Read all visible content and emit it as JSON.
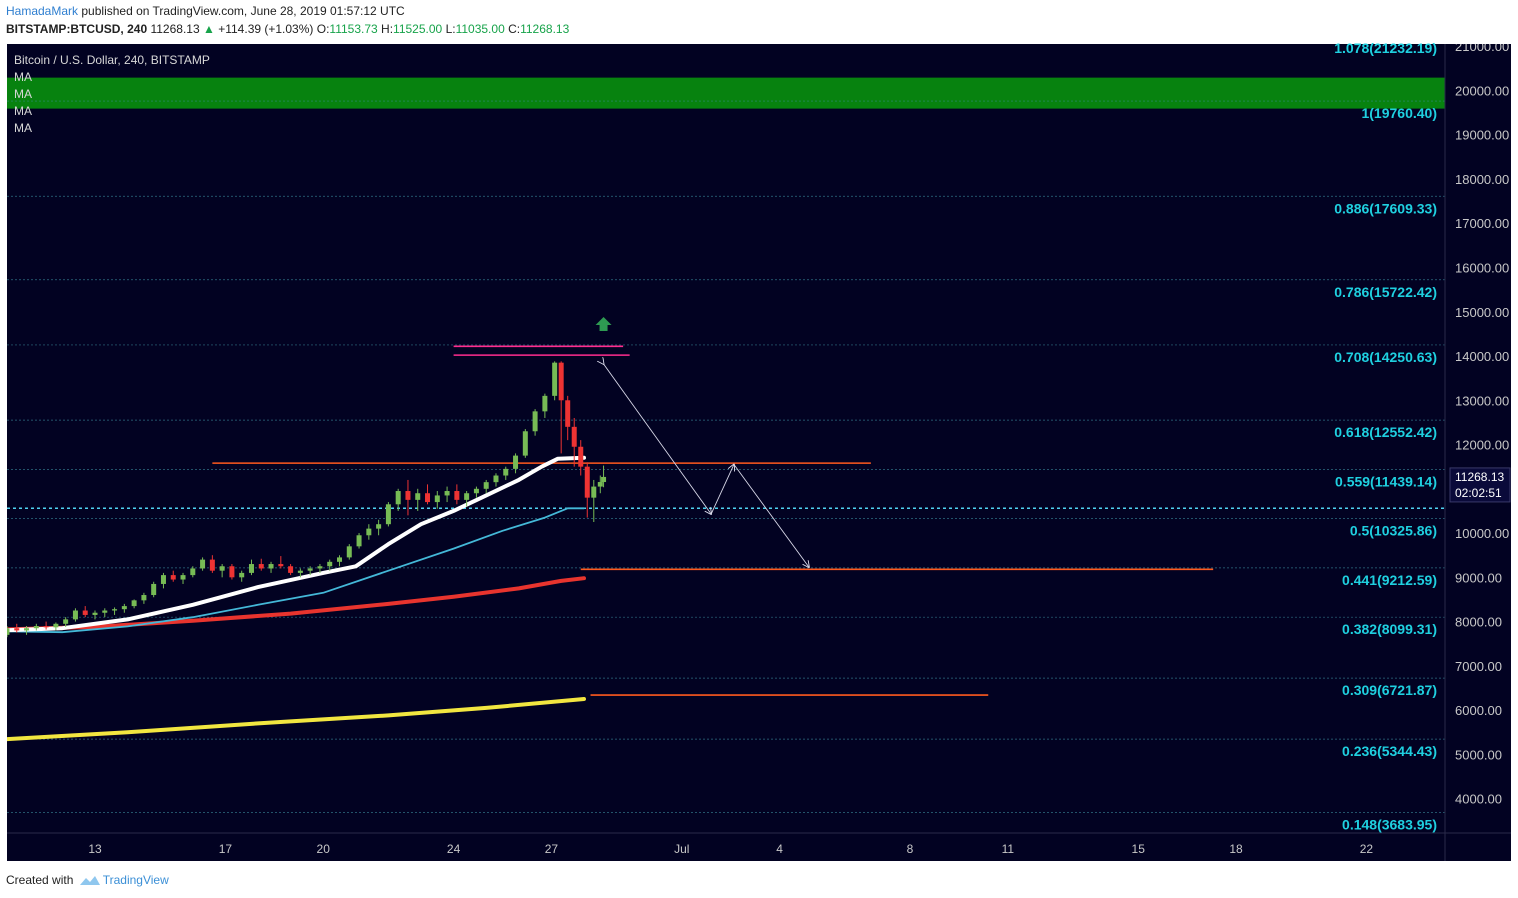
{
  "header": {
    "author": "HamadaMark",
    "published": "published on TradingView.com, June 28, 2019 01:57:12 UTC",
    "symbol": "BITSTAMP:BTCUSD, 240",
    "last": "11268.13",
    "change_arrow": "▲",
    "change": "+114.39 (+1.03%)",
    "o_label": "O:",
    "o_value": "11153.73",
    "h_label": "H:",
    "h_value": "11525.00",
    "l_label": "L:",
    "l_value": "11035.00",
    "c_label": "C:",
    "c_value": "11268.13"
  },
  "legend": {
    "title": "Bitcoin / U.S. Dollar, 240, BITSTAMP",
    "ma": [
      "MA",
      "MA",
      "MA",
      "MA"
    ]
  },
  "footer": {
    "created": "Created with",
    "brand": "TradingView",
    "logo_icon": "tradingview-logo-icon"
  },
  "colors": {
    "background": "#020222",
    "grid": "#3a8a9a",
    "fib_text": "#1fd0e0",
    "axis_text": "#c8c8c8",
    "green_zone": "#07820f",
    "orange_line": "#ff5a1e",
    "magenta_line": "#ff2d8e",
    "ma_white": "#ffffff",
    "ma_blue": "#44b8d8",
    "ma_red": "#e8342e",
    "ma_yellow": "#f2e640",
    "candle_up": "#77bb55",
    "candle_down": "#ee3333",
    "price_label_bg": "#0a0a3a"
  },
  "chart_data": {
    "type": "candlestick",
    "title": "Bitcoin / U.S. Dollar, 240, BITSTAMP",
    "ylim": [
      3400,
      21300
    ],
    "y_ticks": [
      4000,
      5000,
      6000,
      7000,
      8000,
      9000,
      10000,
      11000,
      12000,
      13000,
      14000,
      15000,
      16000,
      17000,
      18000,
      19000,
      20000,
      21000
    ],
    "y_tick_labels": [
      "4000.00",
      "5000.00",
      "6000.00",
      "7000.00",
      "8000.00",
      "9000.00",
      "10000.00",
      "11000.00",
      "12000.00",
      "13000.00",
      "14000.00",
      "15000.00",
      "16000.00",
      "17000.00",
      "18000.00",
      "19000.00",
      "20000.00",
      "21000.00"
    ],
    "x_ticks": [
      {
        "label": "13",
        "day": 13
      },
      {
        "label": "17",
        "day": 17
      },
      {
        "label": "20",
        "day": 20
      },
      {
        "label": "24",
        "day": 24
      },
      {
        "label": "27",
        "day": 27
      },
      {
        "label": "Jul",
        "day": 31
      },
      {
        "label": "4",
        "day": 34
      },
      {
        "label": "8",
        "day": 38
      },
      {
        "label": "11",
        "day": 41
      },
      {
        "label": "15",
        "day": 45
      },
      {
        "label": "18",
        "day": 48
      },
      {
        "label": "22",
        "day": 52
      }
    ],
    "fib_levels": [
      {
        "label": "1.078(21232.19)",
        "value": 21232.19
      },
      {
        "label": "1(19760.40)",
        "value": 19760.4
      },
      {
        "label": "0.886(17609.33)",
        "value": 17609.33
      },
      {
        "label": "0.786(15722.42)",
        "value": 15722.42
      },
      {
        "label": "0.708(14250.63)",
        "value": 14250.63
      },
      {
        "label": "0.618(12552.42)",
        "value": 12552.42
      },
      {
        "label": "0.559(11439.14)",
        "value": 11439.14
      },
      {
        "label": "0.5(10325.86)",
        "value": 10325.86
      },
      {
        "label": "0.441(9212.59)",
        "value": 9212.59
      },
      {
        "label": "0.382(8099.31)",
        "value": 8099.31
      },
      {
        "label": "0.309(6721.87)",
        "value": 6721.87
      },
      {
        "label": "0.236(5344.43)",
        "value": 5344.43
      },
      {
        "label": "0.148(3683.95)",
        "value": 3683.95
      }
    ],
    "current_price": {
      "label": "11268.13",
      "value": 11268.13,
      "countdown": "02:02:51"
    },
    "dotted_price_line": 10560,
    "green_zone": {
      "from": 19590,
      "to": 20290
    },
    "horizontal_lines": [
      {
        "kind": "magenta",
        "value": 14220,
        "x_from": 24.0,
        "x_to": 29.2
      },
      {
        "kind": "magenta",
        "value": 14020,
        "x_from": 24.0,
        "x_to": 29.4
      },
      {
        "kind": "orange",
        "value": 11580,
        "x_from": 16.6,
        "x_to": 36.8
      },
      {
        "kind": "orange",
        "value": 9180,
        "x_from": 27.9,
        "x_to": 47.3
      },
      {
        "kind": "orange",
        "value": 6340,
        "x_from": 28.2,
        "x_to": 40.4
      }
    ],
    "projection_arrows": [
      {
        "from": [
          28.6,
          13820
        ],
        "to": [
          31.9,
          10430
        ]
      },
      {
        "from": [
          31.9,
          10430
        ],
        "to": [
          32.6,
          11550
        ]
      },
      {
        "from": [
          32.6,
          11550
        ],
        "to": [
          34.9,
          9230
        ]
      }
    ],
    "up_arrow": {
      "x": 28.6,
      "y": 14700
    },
    "moving_averages": [
      {
        "name": "MA",
        "color_key": "ma_yellow",
        "points": [
          [
            10.2,
            5340
          ],
          [
            14,
            5500
          ],
          [
            18,
            5700
          ],
          [
            22,
            5880
          ],
          [
            25,
            6050
          ],
          [
            28,
            6250
          ]
        ]
      },
      {
        "name": "MA",
        "color_key": "ma_red",
        "points": [
          [
            10.2,
            7820
          ],
          [
            13,
            7880
          ],
          [
            16,
            8020
          ],
          [
            19,
            8180
          ],
          [
            22,
            8400
          ],
          [
            24,
            8560
          ],
          [
            26,
            8750
          ],
          [
            27.3,
            8920
          ],
          [
            28,
            8980
          ]
        ]
      },
      {
        "name": "MA",
        "color_key": "ma_blue",
        "points": [
          [
            10.2,
            7780
          ],
          [
            12,
            7760
          ],
          [
            14,
            7890
          ],
          [
            16,
            8100
          ],
          [
            18,
            8380
          ],
          [
            20,
            8650
          ],
          [
            22,
            9150
          ],
          [
            24,
            9650
          ],
          [
            25.5,
            10050
          ],
          [
            26.8,
            10350
          ],
          [
            27.5,
            10560
          ],
          [
            28,
            10560
          ]
        ]
      },
      {
        "name": "MA",
        "color_key": "ma_white",
        "points": [
          [
            10.2,
            7800
          ],
          [
            12,
            7850
          ],
          [
            14,
            8050
          ],
          [
            16,
            8380
          ],
          [
            18,
            8780
          ],
          [
            20,
            9100
          ],
          [
            21,
            9250
          ],
          [
            22,
            9750
          ],
          [
            23,
            10200
          ],
          [
            24,
            10500
          ],
          [
            25,
            10850
          ],
          [
            26,
            11200
          ],
          [
            26.7,
            11500
          ],
          [
            27.2,
            11680
          ],
          [
            28,
            11700
          ]
        ]
      }
    ],
    "candles": [
      [
        10.3,
        7700,
        7900,
        7650,
        7850
      ],
      [
        10.6,
        7850,
        7950,
        7750,
        7800
      ],
      [
        10.9,
        7800,
        7900,
        7700,
        7850
      ],
      [
        11.2,
        7850,
        7950,
        7800,
        7900
      ],
      [
        11.5,
        7900,
        8000,
        7820,
        7870
      ],
      [
        11.8,
        7870,
        7980,
        7800,
        7950
      ],
      [
        12.1,
        7950,
        8100,
        7880,
        8050
      ],
      [
        12.4,
        8050,
        8300,
        8000,
        8250
      ],
      [
        12.7,
        8250,
        8350,
        8100,
        8150
      ],
      [
        13.0,
        8150,
        8250,
        8050,
        8200
      ],
      [
        13.3,
        8200,
        8300,
        8100,
        8250
      ],
      [
        13.6,
        8250,
        8320,
        8150,
        8280
      ],
      [
        13.9,
        8280,
        8400,
        8200,
        8350
      ],
      [
        14.2,
        8350,
        8500,
        8300,
        8480
      ],
      [
        14.5,
        8480,
        8650,
        8400,
        8600
      ],
      [
        14.8,
        8600,
        8900,
        8550,
        8850
      ],
      [
        15.1,
        8850,
        9100,
        8750,
        9050
      ],
      [
        15.4,
        9050,
        9150,
        8900,
        8950
      ],
      [
        15.7,
        8950,
        9100,
        8850,
        9050
      ],
      [
        16.0,
        9050,
        9250,
        9000,
        9200
      ],
      [
        16.3,
        9200,
        9450,
        9150,
        9400
      ],
      [
        16.6,
        9400,
        9500,
        9100,
        9150
      ],
      [
        16.9,
        9150,
        9300,
        9000,
        9250
      ],
      [
        17.2,
        9250,
        9300,
        8950,
        9000
      ],
      [
        17.5,
        9000,
        9150,
        8900,
        9100
      ],
      [
        17.8,
        9100,
        9400,
        9050,
        9300
      ],
      [
        18.1,
        9300,
        9420,
        9150,
        9200
      ],
      [
        18.4,
        9200,
        9350,
        9100,
        9300
      ],
      [
        18.7,
        9300,
        9480,
        9200,
        9250
      ],
      [
        19.0,
        9250,
        9300,
        9050,
        9100
      ],
      [
        19.3,
        9100,
        9200,
        9000,
        9150
      ],
      [
        19.6,
        9150,
        9250,
        9050,
        9200
      ],
      [
        19.9,
        9200,
        9300,
        9100,
        9250
      ],
      [
        20.2,
        9250,
        9400,
        9150,
        9350
      ],
      [
        20.5,
        9350,
        9500,
        9250,
        9450
      ],
      [
        20.8,
        9450,
        9750,
        9400,
        9700
      ],
      [
        21.1,
        9700,
        10000,
        9650,
        9950
      ],
      [
        21.4,
        9950,
        10200,
        9850,
        10100
      ],
      [
        21.7,
        10100,
        10300,
        9950,
        10200
      ],
      [
        22.0,
        10200,
        10700,
        10150,
        10650
      ],
      [
        22.3,
        10650,
        11000,
        10500,
        10950
      ],
      [
        22.6,
        10950,
        11200,
        10400,
        10750
      ],
      [
        22.9,
        10750,
        11000,
        10500,
        10900
      ],
      [
        23.2,
        10900,
        11100,
        10650,
        10700
      ],
      [
        23.5,
        10700,
        10950,
        10550,
        10850
      ],
      [
        23.8,
        10850,
        11050,
        10700,
        10950
      ],
      [
        24.1,
        10950,
        11100,
        10650,
        10750
      ],
      [
        24.4,
        10750,
        10950,
        10600,
        10900
      ],
      [
        24.7,
        10900,
        11050,
        10800,
        11000
      ],
      [
        25.0,
        11000,
        11200,
        10900,
        11150
      ],
      [
        25.3,
        11150,
        11350,
        11050,
        11300
      ],
      [
        25.6,
        11300,
        11500,
        11200,
        11450
      ],
      [
        25.9,
        11450,
        11800,
        11350,
        11750
      ],
      [
        26.2,
        11750,
        12350,
        11700,
        12300
      ],
      [
        26.5,
        12300,
        12800,
        12200,
        12750
      ],
      [
        26.8,
        12750,
        13150,
        12600,
        13100
      ],
      [
        27.1,
        13100,
        13880,
        13000,
        13850
      ],
      [
        27.3,
        13850,
        13880,
        11800,
        13000
      ],
      [
        27.5,
        13000,
        13100,
        12100,
        12400
      ],
      [
        27.7,
        12400,
        12600,
        11500,
        11950
      ],
      [
        27.9,
        11950,
        12100,
        11300,
        11500
      ],
      [
        28.1,
        11500,
        11600,
        10350,
        10800
      ],
      [
        28.3,
        10800,
        11200,
        10250,
        11050
      ],
      [
        28.5,
        11050,
        11300,
        10900,
        11153
      ],
      [
        28.6,
        11153,
        11525,
        11035,
        11268
      ]
    ]
  }
}
